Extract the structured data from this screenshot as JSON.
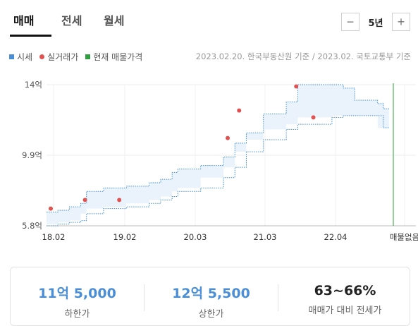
{
  "tabs": [
    {
      "label": "매매",
      "active": true
    },
    {
      "label": "전세",
      "active": false
    },
    {
      "label": "월세",
      "active": false
    }
  ],
  "period": {
    "label": "5년",
    "minus": "−",
    "plus": "+"
  },
  "legend": {
    "market_price": "시세",
    "real_transaction": "실거래가",
    "current_listing": "현재 매물가격"
  },
  "source": "2023.02.20. 한국부동산원 기준 / 2023.02. 국토교통부 기준",
  "summary": {
    "lower": {
      "value": "11억 5,000",
      "label": "하한가"
    },
    "upper": {
      "value": "12억 5,500",
      "label": "상한가"
    },
    "ratio": {
      "value": "63~66%",
      "label": "매매가 대비 전세가"
    }
  },
  "colors": {
    "band_fill": "#eaf3fc",
    "band_line": "#3f8fd3",
    "dot": "#e05252",
    "listing_line": "#2e9e3e",
    "legend_blue": "#4a8fd6",
    "legend_red": "#e05252",
    "legend_green": "#2e9e3e"
  },
  "chart_data": {
    "type": "area",
    "x_axis": {
      "tick_labels": [
        "18.02",
        "19.02",
        "20.03",
        "21.03",
        "22.04",
        "매물없음"
      ],
      "range": [
        "2018-02",
        "2023-03"
      ]
    },
    "y_axis": {
      "tick_labels": [
        "14억",
        "9.9억",
        "5.8억"
      ],
      "ticks": [
        14.0,
        9.9,
        5.8
      ],
      "range": [
        5.8,
        14.0
      ],
      "unit": "억"
    },
    "grid": true,
    "legend_position": "top-left",
    "series": [
      {
        "name": "시세",
        "kind": "band",
        "points": [
          {
            "date": "2018-02",
            "low": 5.8,
            "high": 6.6
          },
          {
            "date": "2018-04",
            "low": 5.9,
            "high": 6.7
          },
          {
            "date": "2018-06",
            "low": 6.0,
            "high": 6.9
          },
          {
            "date": "2018-08",
            "low": 6.1,
            "high": 7.1
          },
          {
            "date": "2018-09",
            "low": 6.5,
            "high": 7.8
          },
          {
            "date": "2018-12",
            "low": 6.8,
            "high": 8.0
          },
          {
            "date": "2019-04",
            "low": 6.9,
            "high": 8.1
          },
          {
            "date": "2019-08",
            "low": 7.1,
            "high": 8.3
          },
          {
            "date": "2019-10",
            "low": 7.3,
            "high": 8.5
          },
          {
            "date": "2019-12",
            "low": 7.5,
            "high": 8.9
          },
          {
            "date": "2020-01",
            "low": 7.8,
            "high": 9.1
          },
          {
            "date": "2020-05",
            "low": 8.0,
            "high": 9.3
          },
          {
            "date": "2020-09",
            "low": 8.6,
            "high": 9.8
          },
          {
            "date": "2020-11",
            "low": 9.2,
            "high": 10.6
          },
          {
            "date": "2021-01",
            "low": 10.1,
            "high": 11.2
          },
          {
            "date": "2021-04",
            "low": 10.8,
            "high": 12.3
          },
          {
            "date": "2021-08",
            "low": 11.4,
            "high": 13.0
          },
          {
            "date": "2021-10",
            "low": 11.7,
            "high": 14.0
          },
          {
            "date": "2022-04",
            "low": 12.1,
            "high": 14.0
          },
          {
            "date": "2022-06",
            "low": 12.2,
            "high": 13.8
          },
          {
            "date": "2022-08",
            "low": 12.2,
            "high": 13.1
          },
          {
            "date": "2022-12",
            "low": 12.2,
            "high": 12.9
          },
          {
            "date": "2023-01",
            "low": 11.5,
            "high": 12.6
          },
          {
            "date": "2023-02",
            "low": 11.5,
            "high": 12.55
          }
        ]
      },
      {
        "name": "실거래가",
        "kind": "scatter",
        "points": [
          {
            "date": "2018-02",
            "value": 6.8
          },
          {
            "date": "2018-08",
            "value": 7.3
          },
          {
            "date": "2019-02",
            "value": 7.3
          },
          {
            "date": "2020-09",
            "value": 10.9
          },
          {
            "date": "2020-11",
            "value": 12.5
          },
          {
            "date": "2021-09",
            "value": 13.9
          },
          {
            "date": "2021-12",
            "value": 12.1
          }
        ]
      },
      {
        "name": "현재 매물가격",
        "kind": "marker_line",
        "date": "2023-03",
        "value_label": "매물없음"
      }
    ]
  }
}
